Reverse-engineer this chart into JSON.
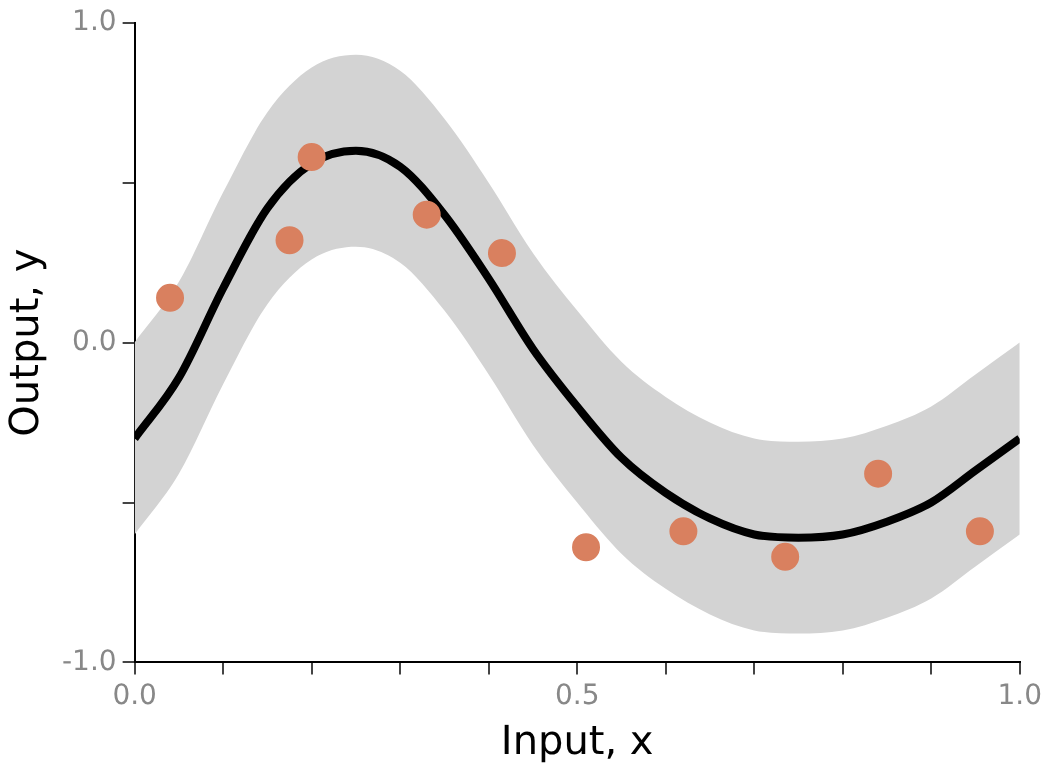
{
  "chart_data": {
    "type": "line",
    "xlabel": "Input, x",
    "ylabel": "Output, y",
    "xlim": [
      0,
      1
    ],
    "ylim": [
      -1,
      1
    ],
    "xticks": [
      {
        "value": 0,
        "label": "0.0"
      },
      {
        "value": 0.1,
        "label": null
      },
      {
        "value": 0.2,
        "label": null
      },
      {
        "value": 0.3,
        "label": null
      },
      {
        "value": 0.4,
        "label": null
      },
      {
        "value": 0.5,
        "label": "0.5"
      },
      {
        "value": 0.6,
        "label": null
      },
      {
        "value": 0.7,
        "label": null
      },
      {
        "value": 0.8,
        "label": null
      },
      {
        "value": 0.9,
        "label": null
      },
      {
        "value": 1,
        "label": "1.0"
      }
    ],
    "yticks": [
      {
        "value": -1,
        "label": "-1.0"
      },
      {
        "value": -0.5,
        "label": null
      },
      {
        "value": 0,
        "label": "0.0"
      },
      {
        "value": 0.5,
        "label": null
      },
      {
        "value": 1,
        "label": "1.0"
      }
    ],
    "grid": false,
    "legend": false,
    "series": [
      {
        "color": "#000000",
        "x": [
          0,
          0.05,
          0.1,
          0.15,
          0.2,
          0.25,
          0.3,
          0.35,
          0.4,
          0.45,
          0.5,
          0.55,
          0.6,
          0.65,
          0.7,
          0.75,
          0.8,
          0.85,
          0.9,
          0.95,
          1
        ],
        "values": [
          -0.3,
          -0.11,
          0.17,
          0.42,
          0.56,
          0.6,
          0.55,
          0.4,
          0.2,
          -0.02,
          -0.2,
          -0.36,
          -0.47,
          -0.55,
          -0.6,
          -0.61,
          -0.6,
          -0.56,
          -0.5,
          -0.4,
          -0.3
        ],
        "lower": [
          -0.6,
          -0.41,
          -0.13,
          0.12,
          0.26,
          0.3,
          0.25,
          0.1,
          -0.1,
          -0.32,
          -0.5,
          -0.66,
          -0.77,
          -0.85,
          -0.9,
          -0.91,
          -0.9,
          -0.86,
          -0.8,
          -0.7,
          -0.6
        ],
        "upper": [
          0,
          0.19,
          0.47,
          0.72,
          0.86,
          0.9,
          0.85,
          0.7,
          0.5,
          0.28,
          0.1,
          -0.06,
          -0.17,
          -0.25,
          -0.3,
          -0.31,
          -0.3,
          -0.26,
          -0.2,
          -0.1,
          0
        ]
      },
      {
        "type": "scatter",
        "color": "#d9805f",
        "marker": "circle",
        "x": [
          0.04,
          0.175,
          0.2,
          0.33,
          0.415,
          0.51,
          0.62,
          0.735,
          0.84,
          0.955
        ],
        "values": [
          0.14,
          0.32,
          0.58,
          0.4,
          0.28,
          -0.64,
          -0.59,
          -0.67,
          -0.41,
          -0.59
        ]
      }
    ]
  }
}
